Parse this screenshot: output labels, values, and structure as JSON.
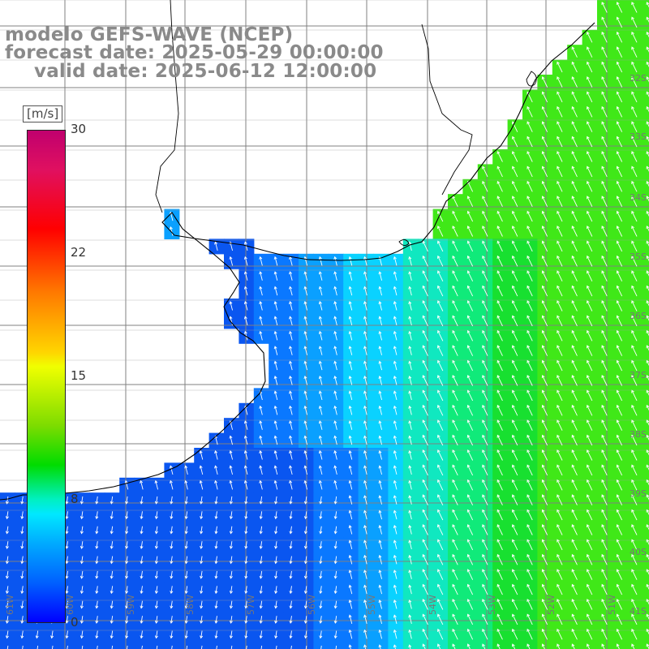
{
  "title": {
    "model": "modelo GEFS-WAVE (NCEP)",
    "forecast": "forecast date: 2025-05-29 00:00:00",
    "valid": "valid date: 2025-06-12 12:00:00"
  },
  "colorbar": {
    "unit": "[m/s]",
    "ticks": [
      {
        "label": "30",
        "value": 30
      },
      {
        "label": "22",
        "value": 22
      },
      {
        "label": "15",
        "value": 15
      },
      {
        "label": "8",
        "value": 8
      },
      {
        "label": "0",
        "value": 0
      }
    ],
    "colors": [
      "#0000ff",
      "#0060ff",
      "#00aaff",
      "#00e8ff",
      "#00dc00",
      "#7ddc00",
      "#f0ff00",
      "#ff7a00",
      "#ff0000",
      "#c0006e"
    ]
  },
  "map": {
    "field": "wind speed with direction arrows",
    "ocean_palette": [
      "#0a56f0",
      "#0a78ff",
      "#0aa0ff",
      "#0ad2ff",
      "#10e8c0",
      "#10ea7a",
      "#18e030",
      "#40e818"
    ],
    "land_color": "#ffffff",
    "coast_color": "#000000",
    "grid_color": "#808080",
    "arrow_color": "#ffffff",
    "lat_labels_right": [
      "32S",
      "33S",
      "34S",
      "35S",
      "36S",
      "37S",
      "38S",
      "39S",
      "40S",
      "41S"
    ],
    "lon_labels_bottom": [
      "61W",
      "60W",
      "59W",
      "58W",
      "57W",
      "56W",
      "55W",
      "54W",
      "53W",
      "52W",
      "51W"
    ]
  }
}
